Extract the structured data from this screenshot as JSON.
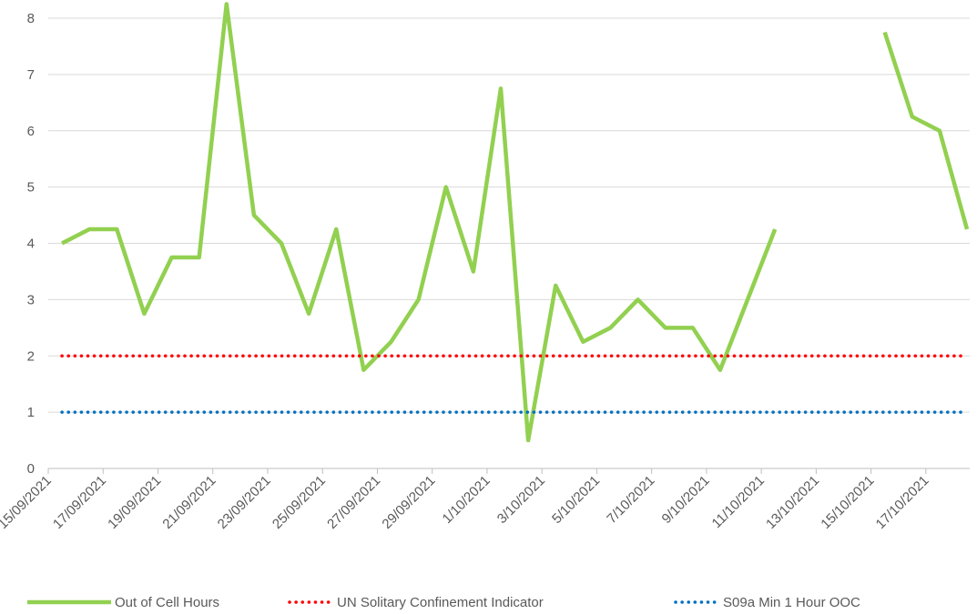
{
  "chart_data": {
    "type": "line",
    "categories": [
      "15/09/2021",
      null,
      "17/09/2021",
      null,
      "19/09/2021",
      null,
      "21/09/2021",
      null,
      "23/09/2021",
      null,
      "25/09/2021",
      null,
      "27/09/2021",
      null,
      "29/09/2021",
      null,
      "1/10/2021",
      null,
      "3/10/2021",
      null,
      "5/10/2021",
      null,
      "7/10/2021",
      null,
      "9/10/2021",
      null,
      "11/10/2021",
      null,
      "13/10/2021",
      null,
      "15/10/2021",
      null,
      "17/10/2021",
      null
    ],
    "series": [
      {
        "name": "Out of Cell Hours",
        "color": "#92d050",
        "style": "solid",
        "values": [
          4,
          4.25,
          4.25,
          2.75,
          3.75,
          3.75,
          8.25,
          4.5,
          4,
          2.75,
          4.25,
          1.75,
          2.25,
          3,
          5,
          3.5,
          6.75,
          0.5,
          3.25,
          2.25,
          2.5,
          3,
          2.5,
          2.5,
          1.75,
          3,
          4.25,
          null,
          null,
          null,
          7.75,
          6.25,
          6,
          4.25
        ]
      },
      {
        "name": "UN Solitary Confinement Indicator",
        "color": "#ff0000",
        "style": "dotted",
        "values": [
          2,
          2,
          2,
          2,
          2,
          2,
          2,
          2,
          2,
          2,
          2,
          2,
          2,
          2,
          2,
          2,
          2,
          2,
          2,
          2,
          2,
          2,
          2,
          2,
          2,
          2,
          2,
          2,
          2,
          2,
          2,
          2,
          2,
          2
        ]
      },
      {
        "name": "S09a Min 1 Hour OOC",
        "color": "#0070c0",
        "style": "dotted",
        "values": [
          1,
          1,
          1,
          1,
          1,
          1,
          1,
          1,
          1,
          1,
          1,
          1,
          1,
          1,
          1,
          1,
          1,
          1,
          1,
          1,
          1,
          1,
          1,
          1,
          1,
          1,
          1,
          1,
          1,
          1,
          1,
          1,
          1,
          1
        ]
      }
    ],
    "ylim": [
      0,
      8
    ],
    "yticks": [
      0,
      1,
      2,
      3,
      4,
      5,
      6,
      7,
      8
    ],
    "grid": true,
    "legend": "bottom"
  }
}
